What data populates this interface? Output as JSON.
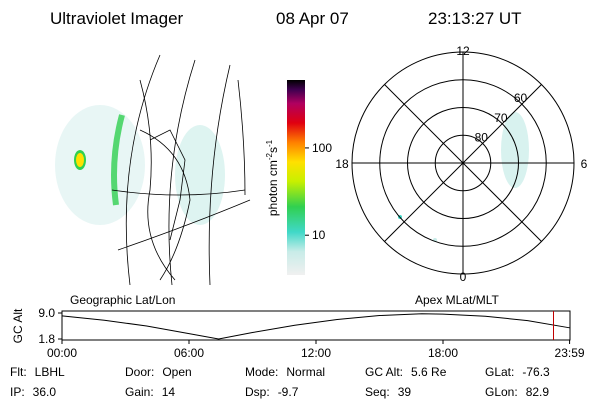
{
  "header": {
    "instrument": "Ultraviolet Imager",
    "date": "08 Apr 07",
    "time": "23:13:27 UT"
  },
  "colorbar": {
    "label_parts": [
      "photon cm",
      "-2",
      "s",
      "-1"
    ],
    "log": true,
    "lim": [
      3.5,
      600
    ],
    "ticks": [
      10,
      100
    ]
  },
  "polar": {
    "mlt_labels": [
      12,
      18,
      6,
      0
    ],
    "lat_rings": [
      80,
      70,
      60
    ],
    "outer_lat": 50
  },
  "altitude_panel": {
    "y_label": "GC Alt",
    "left_label": "Geographic Lat/Lon",
    "right_label": "Apex MLat/MLT",
    "ylim": [
      1.8,
      9.0
    ],
    "yticks": [
      {
        "value": 9.0,
        "label": "9.0"
      },
      {
        "value": 1.8,
        "label": "1.8"
      }
    ],
    "xlim": [
      0,
      24
    ],
    "xticks": [
      {
        "value": 0,
        "label": "00:00"
      },
      {
        "value": 6,
        "label": "06:00"
      },
      {
        "value": 12,
        "label": "12:00"
      },
      {
        "value": 18,
        "label": "18:00"
      },
      {
        "value": 23.98,
        "label": "23:59"
      }
    ],
    "x": [
      0,
      2,
      4,
      6,
      7.4,
      9,
      11,
      13,
      15,
      17,
      18,
      20,
      22,
      23.98
    ],
    "values": [
      8.2,
      7.0,
      5.4,
      3.3,
      1.8,
      3.6,
      5.6,
      7.2,
      8.3,
      8.8,
      8.7,
      8.1,
      6.9,
      4.9
    ],
    "current_time": 23.22
  },
  "footer": [
    [
      {
        "label": "Flt:",
        "value": "LBHL"
      },
      {
        "label": "Door:",
        "value": "Open"
      },
      {
        "label": "Mode:",
        "value": "Normal"
      },
      {
        "label": "GC Alt:",
        "value": "5.6 Re"
      },
      {
        "label": "GLat:",
        "value": "-76.3"
      }
    ],
    [
      {
        "label": "IP:",
        "value": "36.0"
      },
      {
        "label": "Gain:",
        "value": "14"
      },
      {
        "label": "Dsp:",
        "value": "-9.7"
      },
      {
        "label": "Seq:",
        "value": "39"
      },
      {
        "label": "GLon:",
        "value": "82.9"
      }
    ]
  ]
}
